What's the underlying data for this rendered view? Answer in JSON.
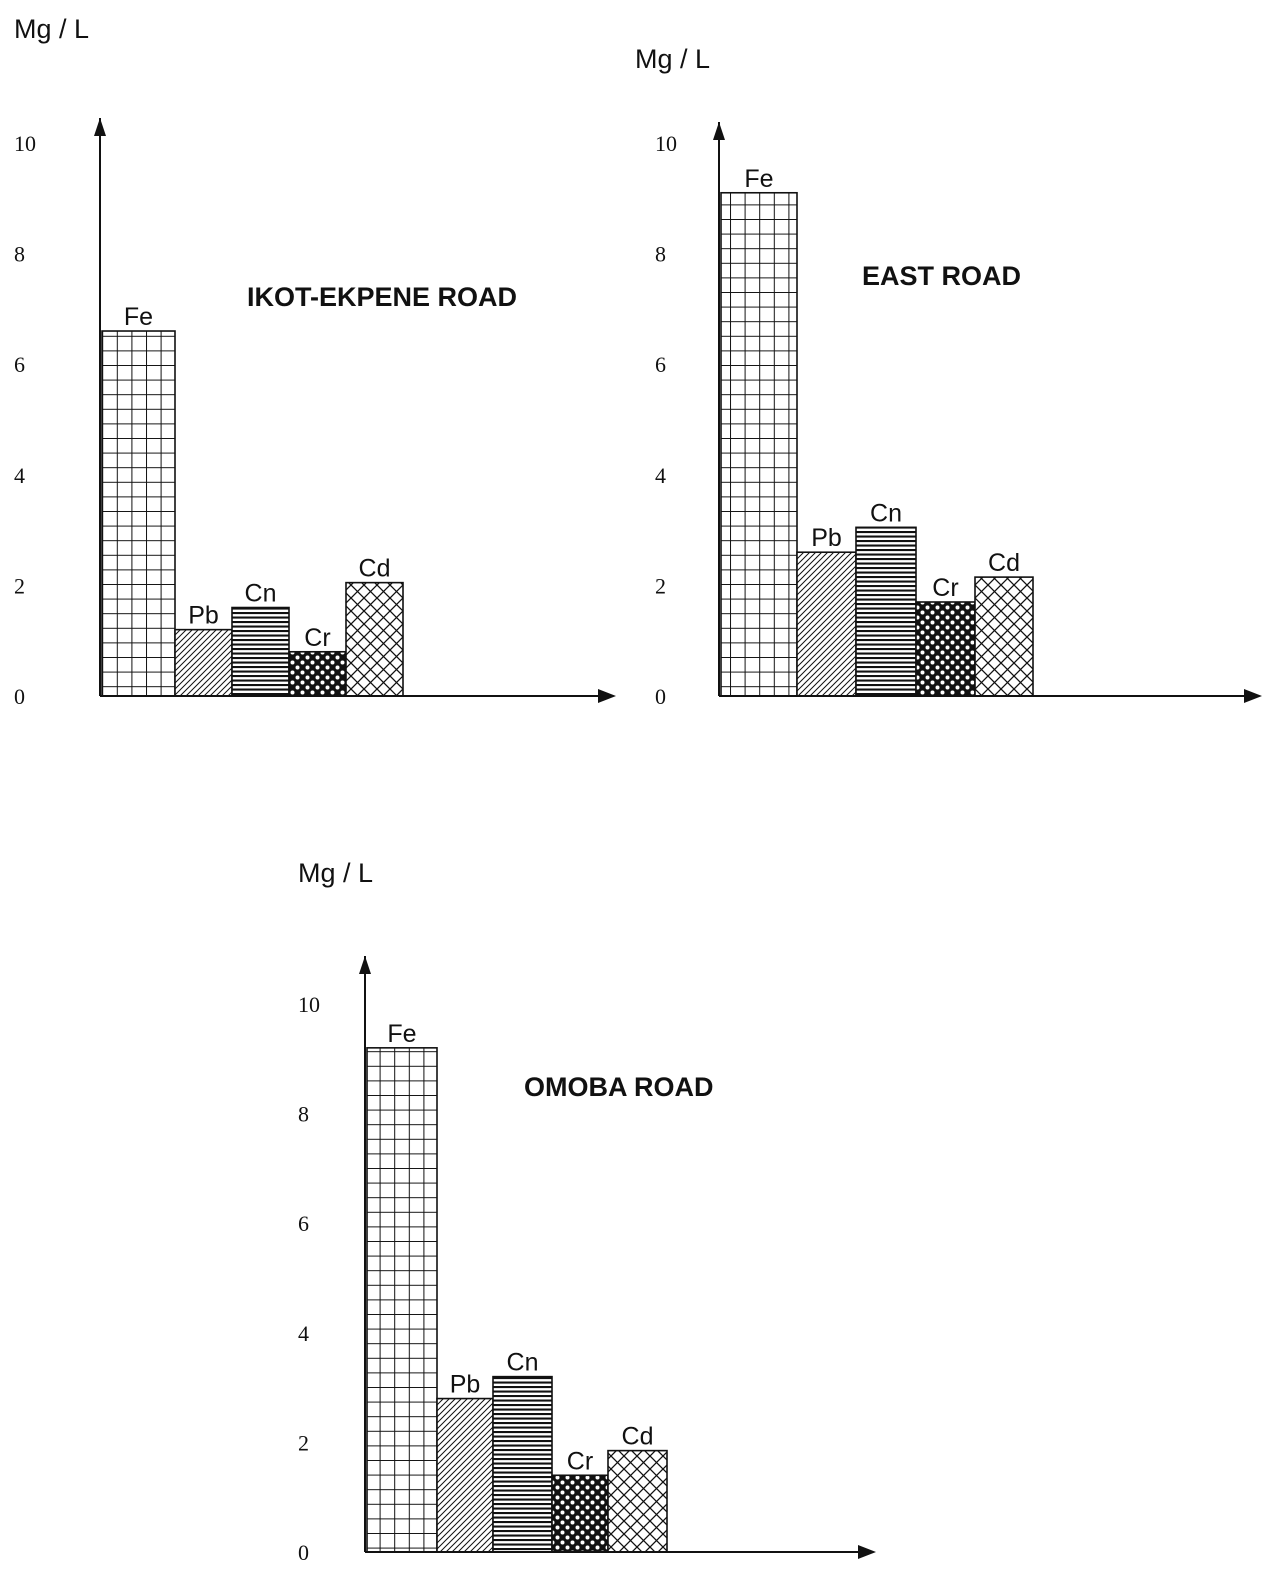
{
  "chart_data": [
    {
      "type": "bar",
      "title": "IKOT-EKPENE ROAD",
      "ylabel": "Mg / L",
      "ylim": [
        0,
        10
      ],
      "yticks": [
        "0",
        "2",
        "4",
        "6",
        "8",
        "10"
      ],
      "categories": [
        "Fe",
        "Pb",
        "Cn",
        "Cr",
        "Cd"
      ],
      "values": [
        6.6,
        1.2,
        1.6,
        0.8,
        2.05
      ],
      "patterns": [
        "grid",
        "diagonal",
        "horizontal",
        "dots",
        "crosshatch"
      ],
      "grid": false,
      "legend": "none"
    },
    {
      "type": "bar",
      "title": "EAST ROAD",
      "ylabel": "Mg / L",
      "ylim": [
        0,
        10
      ],
      "yticks": [
        "0",
        "2",
        "4",
        "6",
        "8",
        "10"
      ],
      "categories": [
        "Fe",
        "Pb",
        "Cn",
        "Cr",
        "Cd"
      ],
      "values": [
        9.1,
        2.6,
        3.05,
        1.7,
        2.15
      ],
      "patterns": [
        "grid",
        "diagonal",
        "horizontal",
        "dots",
        "crosshatch"
      ],
      "grid": false,
      "legend": "none"
    },
    {
      "type": "bar",
      "title": "OMOBA ROAD",
      "ylabel": "Mg / L",
      "ylim": [
        0,
        10
      ],
      "yticks": [
        "0",
        "2",
        "4",
        "6",
        "8",
        "10"
      ],
      "categories": [
        "Fe",
        "Pb",
        "Cn",
        "Cr",
        "Cd"
      ],
      "values": [
        9.2,
        2.8,
        3.2,
        1.4,
        1.85
      ],
      "patterns": [
        "grid",
        "diagonal",
        "horizontal",
        "dots",
        "crosshatch"
      ],
      "grid": false,
      "legend": "none"
    }
  ],
  "colors": {
    "ink": "#111111",
    "background": "#ffffff"
  }
}
